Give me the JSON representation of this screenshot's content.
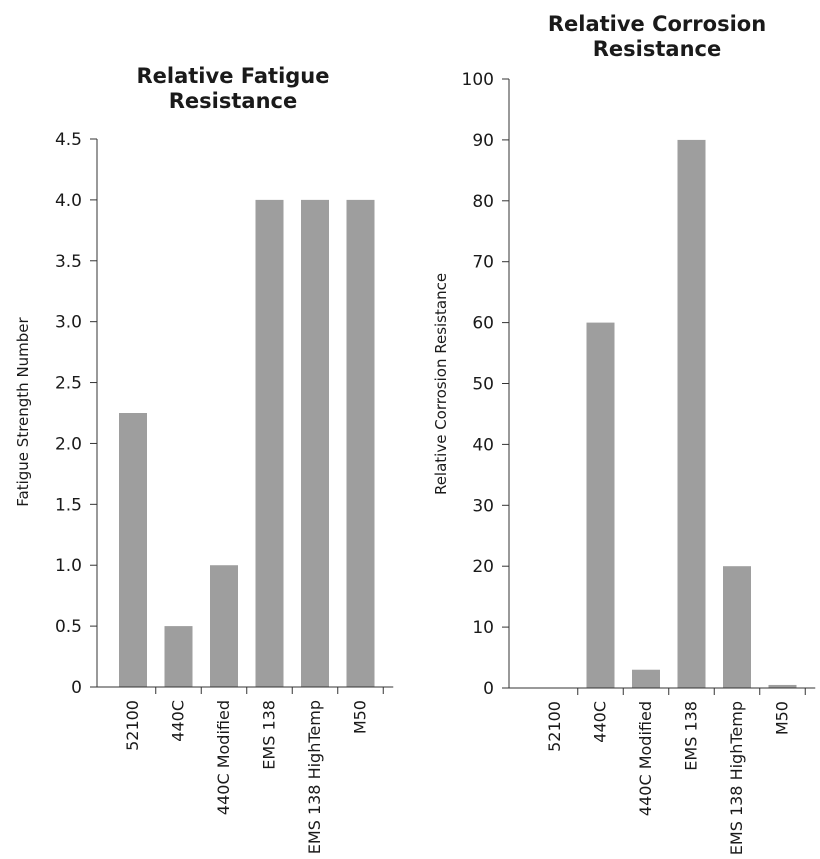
{
  "chart_data": [
    {
      "type": "bar",
      "title_lines": [
        "Relative Fatigue",
        "Resistance"
      ],
      "xlabel": "",
      "ylabel": "Fatigue Strength Number",
      "categories": [
        "52100",
        "440C",
        "440C Modified",
        "EMS 138",
        "EMS 138 HighTemp",
        "M50"
      ],
      "values": [
        2.25,
        0.5,
        1.0,
        4.0,
        4.0,
        4.0
      ],
      "ylim": [
        0,
        4.5
      ],
      "yticks": [
        "0",
        "0.5",
        "1.0",
        "1.5",
        "2.0",
        "2.5",
        "3.0",
        "3.5",
        "4.0",
        "4.5"
      ],
      "grid": false,
      "bar_color": "#9e9e9e"
    },
    {
      "type": "bar",
      "title_lines": [
        "Relative Corrosion",
        "Resistance"
      ],
      "xlabel": "",
      "ylabel": "Relative Corrosion Resistance",
      "categories": [
        "52100",
        "440C",
        "440C Modified",
        "EMS 138",
        "EMS 138 HighTemp",
        "M50"
      ],
      "values": [
        0,
        60,
        3,
        90,
        20,
        0.5
      ],
      "ylim": [
        0,
        100
      ],
      "yticks": [
        "0",
        "10",
        "20",
        "30",
        "40",
        "50",
        "60",
        "70",
        "80",
        "90",
        "100"
      ],
      "grid": false,
      "bar_color": "#9e9e9e"
    }
  ]
}
